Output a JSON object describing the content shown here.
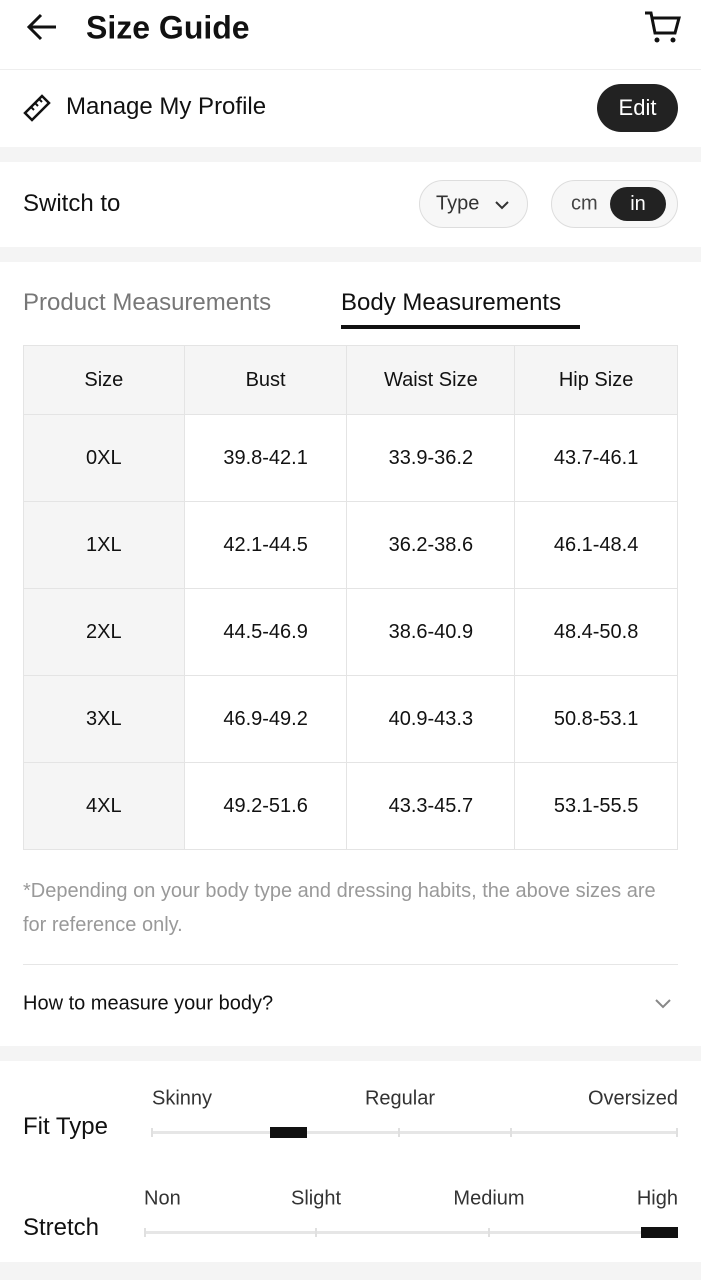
{
  "header": {
    "title": "Size Guide"
  },
  "profile": {
    "label": "Manage My Profile",
    "button": "Edit"
  },
  "switch": {
    "label": "Switch to",
    "type": "Type",
    "units": [
      "cm",
      "in"
    ]
  },
  "tabs": [
    "Product Measurements",
    "Body Measurements"
  ],
  "table": {
    "headers": [
      "Size",
      "Bust",
      "Waist Size",
      "Hip Size"
    ],
    "rows": [
      [
        "0XL",
        "39.8-42.1",
        "33.9-36.2",
        "43.7-46.1"
      ],
      [
        "1XL",
        "42.1-44.5",
        "36.2-38.6",
        "46.1-48.4"
      ],
      [
        "2XL",
        "44.5-46.9",
        "38.6-40.9",
        "48.4-50.8"
      ],
      [
        "3XL",
        "46.9-49.2",
        "40.9-43.3",
        "50.8-53.1"
      ],
      [
        "4XL",
        "49.2-51.6",
        "43.3-45.7",
        "53.1-55.5"
      ]
    ]
  },
  "note": "*Depending on your body type and dressing habits, the above sizes are for reference only.",
  "how_to": "How to measure your body?",
  "fit_type": {
    "label": "Fit Type",
    "options": [
      "Skinny",
      "Regular",
      "Oversized"
    ]
  },
  "stretch": {
    "label": "Stretch",
    "options": [
      "Non",
      "Slight",
      "Medium",
      "High"
    ]
  }
}
